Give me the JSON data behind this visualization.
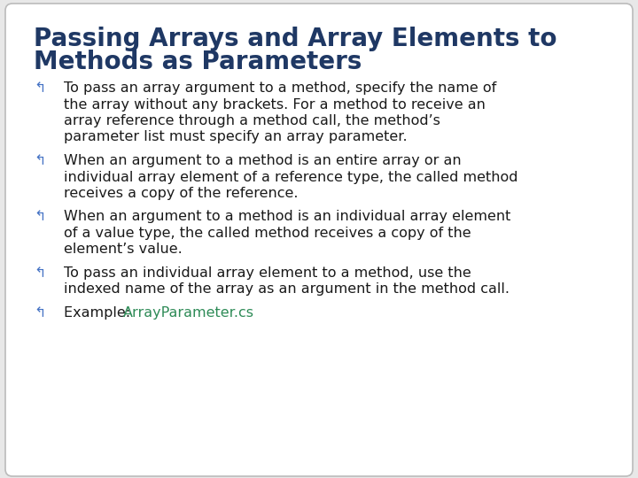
{
  "title_line1": "Passing Arrays and Array Elements to",
  "title_line2": "Methods as Parameters",
  "title_color": "#1F3864",
  "title_fontsize": 20,
  "background_color": "#E8E8E8",
  "box_facecolor": "#FFFFFF",
  "box_edgecolor": "#BBBBBB",
  "bullet_color": "#4472C4",
  "text_color": "#1a1a1a",
  "link_color": "#2E8B57",
  "bullet_symbol": "↰",
  "text_fontsize": 11.5,
  "bullets": [
    {
      "lines": [
        "To pass an array argument to a method, specify the name of",
        "the array without any brackets. For a method to receive an",
        "array reference through a method call, the method’s",
        "parameter list must specify an array parameter."
      ],
      "link": null
    },
    {
      "lines": [
        "When an argument to a method is an entire array or an",
        "individual array element of a reference type, the called method",
        "receives a copy of the reference."
      ],
      "link": null
    },
    {
      "lines": [
        "When an argument to a method is an individual array element",
        "of a value type, the called method receives a copy of the",
        "element’s value."
      ],
      "link": null
    },
    {
      "lines": [
        "To pass an individual array element to a method, use the",
        "indexed name of the array as an argument in the method call."
      ],
      "link": null
    },
    {
      "lines": [
        "Example: "
      ],
      "link": "ArrayParameter.cs"
    }
  ]
}
